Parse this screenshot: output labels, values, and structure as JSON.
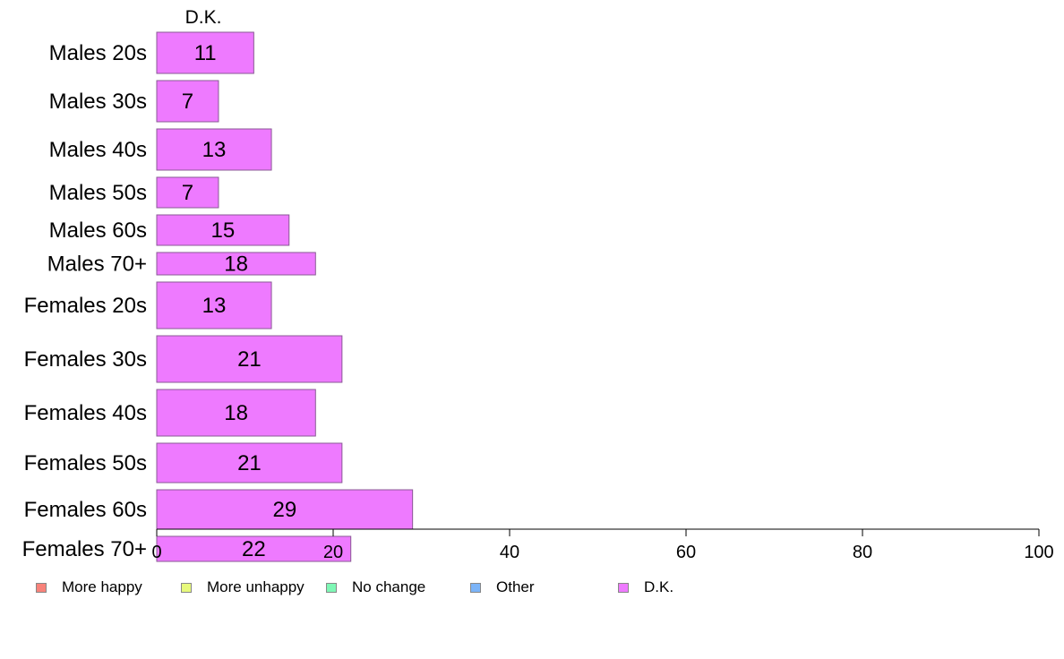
{
  "chart_data": {
    "type": "bar",
    "orientation": "horizontal",
    "stacked": true,
    "title": "D.K.",
    "categories": [
      "Males 20s",
      "Males 30s",
      "Males 40s",
      "Males 50s",
      "Males 60s",
      "Males 70+",
      "Females 20s",
      "Females 30s",
      "Females 40s",
      "Females 50s",
      "Females 60s",
      "Females 70+"
    ],
    "series": [
      {
        "name": "More happy",
        "color": "#f8827a",
        "values": [
          0,
          0,
          0,
          0,
          0,
          0,
          0,
          0,
          0,
          0,
          0,
          0
        ]
      },
      {
        "name": "More unhappy",
        "color": "#e7f97c",
        "values": [
          0,
          0,
          0,
          0,
          0,
          0,
          0,
          0,
          0,
          0,
          0,
          0
        ]
      },
      {
        "name": "No change",
        "color": "#7ef7b5",
        "values": [
          0,
          0,
          0,
          0,
          0,
          0,
          0,
          0,
          0,
          0,
          0,
          0
        ]
      },
      {
        "name": "Other",
        "color": "#7cb4f8",
        "values": [
          0,
          0,
          0,
          0,
          0,
          0,
          0,
          0,
          0,
          0,
          0,
          0
        ]
      },
      {
        "name": "D.K.",
        "color": "#ee7aff",
        "values": [
          11,
          7,
          13,
          7,
          15,
          18,
          13,
          21,
          18,
          21,
          29,
          22
        ]
      }
    ],
    "data_labels": [
      "11",
      "7",
      "13",
      "7",
      "15",
      "18",
      "13",
      "21",
      "18",
      "21",
      "29",
      "22"
    ],
    "bar_widths": [
      46,
      46,
      46,
      34,
      34,
      25,
      52,
      52,
      52,
      44,
      44,
      28
    ],
    "xlim": [
      0,
      100
    ],
    "xticks": [
      0,
      20,
      40,
      60,
      80,
      100
    ],
    "xtick_labels": [
      "0",
      "20",
      "40",
      "60",
      "80",
      "100"
    ],
    "xlabel": "",
    "ylabel": "",
    "grid": false,
    "legend_position": "bottom"
  }
}
